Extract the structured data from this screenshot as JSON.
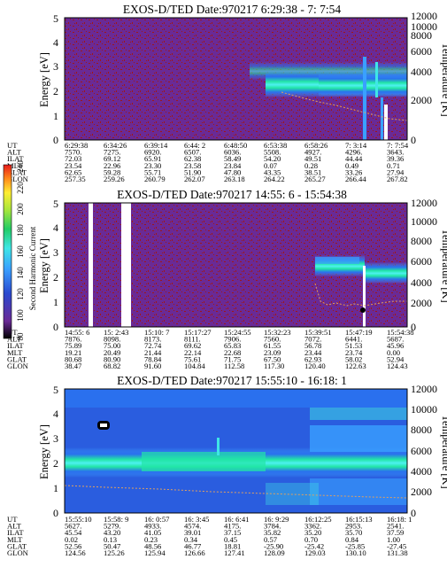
{
  "colors": {
    "background_purple": "#6a2a96",
    "speckle_red": "#a01818",
    "beam_cyan": "#4df0f0",
    "beam_green": "#22e6a6",
    "beam_blue": "#2a70ee",
    "temperature_curve": "#e0a060",
    "gap_white": "#ffffff"
  },
  "colorbar": {
    "label": "Second Harmonic Current",
    "ticks": [
      "80",
      "100",
      "120",
      "140",
      "160",
      "180",
      "200",
      "220",
      "240"
    ],
    "colors": [
      "#000000",
      "#6a2a96",
      "#2a4ad0",
      "#3aa0ff",
      "#3fe6e6",
      "#22cc66",
      "#a8e63c",
      "#ffee33",
      "#ff8a1a",
      "#e61a1a"
    ]
  },
  "chart_data": [
    {
      "type": "heatmap",
      "title": "EXOS-D/TED   Date:970217   6:29:38 - 7: 7:54",
      "ylabel": "Energy [eV]",
      "y2label": "Temperature [K]",
      "ylim": [
        0,
        5
      ],
      "y2lim": [
        0,
        12000
      ],
      "yticks": [
        "0",
        "1",
        "2",
        "3",
        "4",
        "5"
      ],
      "y2ticks": [
        "0",
        "2000",
        "4000",
        "6000",
        "8000",
        "10000",
        "12000"
      ],
      "rows": [
        {
          "label": "UT",
          "values": [
            "6:29:38",
            "6:34:26",
            "6:39:14",
            "6:44: 2",
            "6:48:50",
            "6:53:38",
            "6:58:26",
            "7: 3:14",
            "7: 7:54"
          ]
        },
        {
          "label": "ALT",
          "values": [
            "7570.",
            "7275.",
            "6920.",
            "6507.",
            "6036.",
            "5508.",
            "4927.",
            "4296.",
            "3643."
          ]
        },
        {
          "label": "ILAT",
          "values": [
            "72.03",
            "69.12",
            "65.91",
            "62.38",
            "58.49",
            "54.20",
            "49.51",
            "44.44",
            "39.36"
          ]
        },
        {
          "label": "MLT",
          "values": [
            "23.54",
            "22.96",
            "23.30",
            "23.58",
            "23.84",
            "0.07",
            "0.28",
            "0.49",
            "0.71"
          ]
        },
        {
          "label": "GLAT",
          "values": [
            "62.65",
            "59.28",
            "55.71",
            "51.90",
            "47.80",
            "43.35",
            "38.51",
            "33.26",
            "27.94"
          ]
        },
        {
          "label": "GLON",
          "values": [
            "257.35",
            "259.26",
            "260.79",
            "262.07",
            "263.18",
            "264.22",
            "265.27",
            "266.44",
            "267.82"
          ]
        }
      ],
      "beam": [
        {
          "x": 0.5,
          "center_ev": null
        },
        {
          "x": 0.52,
          "center_ev": 2.6
        },
        {
          "x": 0.6,
          "center_ev": 2.4
        },
        {
          "x": 0.7,
          "center_ev": 2.3
        },
        {
          "x": 0.8,
          "center_ev": 2.2
        },
        {
          "x": 0.9,
          "center_ev": 2.2
        },
        {
          "x": 1.0,
          "center_ev": 2.2
        }
      ],
      "temperature_k": [
        {
          "x": 0.63,
          "k": 5400
        },
        {
          "x": 0.7,
          "k": 4800
        },
        {
          "x": 0.8,
          "k": 3900
        },
        {
          "x": 0.9,
          "k": 3000
        },
        {
          "x": 1.0,
          "k": 2100
        }
      ]
    },
    {
      "type": "heatmap",
      "title": "EXOS-D/TED   Date:970217  14:55: 6 - 15:54:38",
      "ylabel": "Energy [eV]",
      "y2label": "Temperature [K]",
      "ylim": [
        0,
        5
      ],
      "y2lim": [
        0,
        12000
      ],
      "yticks": [
        "0",
        "1",
        "2",
        "3",
        "4",
        "5"
      ],
      "y2ticks": [
        "0",
        "2000",
        "4000",
        "6000",
        "8000",
        "10000",
        "12000"
      ],
      "rows": [
        {
          "label": "UT",
          "values": [
            "14:55: 6",
            "15: 2:43",
            "15:10: 7",
            "15:17:27",
            "15:24:55",
            "15:32:23",
            "15:39:51",
            "15:47:19",
            "15:54:38"
          ]
        },
        {
          "label": "ALT",
          "values": [
            "7876.",
            "8098.",
            "8173.",
            "8111.",
            "7906.",
            "7560.",
            "7072.",
            "6441.",
            "5687."
          ]
        },
        {
          "label": "ILAT",
          "values": [
            "75.89",
            "75.00",
            "72.74",
            "69.62",
            "65.83",
            "61.55",
            "56.78",
            "51.53",
            "45.96"
          ]
        },
        {
          "label": "MLT",
          "values": [
            "19.21",
            "20.49",
            "21.44",
            "22.14",
            "22.68",
            "23.09",
            "23.44",
            "23.74",
            "0.00"
          ]
        },
        {
          "label": "GLAT",
          "values": [
            "80.68",
            "80.90",
            "78.84",
            "75.61",
            "71.75",
            "67.50",
            "62.93",
            "58.02",
            "52.94"
          ]
        },
        {
          "label": "GLON",
          "values": [
            "38.47",
            "68.82",
            "91.60",
            "104.84",
            "112.58",
            "117.30",
            "120.40",
            "122.63",
            "124.43"
          ]
        }
      ],
      "beam": [
        {
          "x": 0.74,
          "center_ev": 2.65
        },
        {
          "x": 0.85,
          "center_ev": 2.55
        },
        {
          "x": 0.88,
          "center_ev": 2.35
        },
        {
          "x": 1.0,
          "center_ev": 2.35
        }
      ],
      "temperature_k": [
        {
          "x": 0.74,
          "k": 3300
        },
        {
          "x": 0.78,
          "k": 1700
        },
        {
          "x": 0.85,
          "k": 1800
        },
        {
          "x": 0.9,
          "k": 1600
        },
        {
          "x": 1.0,
          "k": 1500
        }
      ]
    },
    {
      "type": "heatmap",
      "title": "EXOS-D/TED   Date:970217  15:55:10 - 16:18: 1",
      "ylabel": "Energy [eV]",
      "y2label": "Temperature [K]",
      "ylim": [
        0,
        5
      ],
      "y2lim": [
        0,
        12000
      ],
      "yticks": [
        "0",
        "1",
        "2",
        "3",
        "4",
        "5"
      ],
      "y2ticks": [
        "0",
        "2000",
        "4000",
        "6000",
        "8000",
        "10000",
        "12000"
      ],
      "rows": [
        {
          "label": "UT",
          "values": [
            "15:55:10",
            "15:58: 9",
            "16: 0:57",
            "16: 3:45",
            "16: 6:41",
            "16: 9:29",
            "16:12:25",
            "16:15:13",
            "16:18: 1"
          ]
        },
        {
          "label": "ALT",
          "values": [
            "5627.",
            "5279.",
            "4933.",
            "4574.",
            "4175.",
            "3784.",
            "3362.",
            "2953.",
            "2541."
          ]
        },
        {
          "label": "ILAT",
          "values": [
            "45.54",
            "43.20",
            "41.05",
            "39.01",
            "37.15",
            "35.82",
            "35.20",
            "35.70",
            "37.59"
          ]
        },
        {
          "label": "MLT",
          "values": [
            "0.02",
            "0.13",
            "0.23",
            "0.34",
            "0.45",
            "0.57",
            "0.70",
            "0.84",
            "1.00"
          ]
        },
        {
          "label": "GLAT",
          "values": [
            "52.56",
            "50.47",
            "48.56",
            "46.77",
            "18.81",
            "-25.90",
            "-25.42",
            "-25.85",
            "-27.45"
          ]
        },
        {
          "label": "GLON",
          "values": [
            "124.56",
            "125.26",
            "125.94",
            "126.66",
            "127.41",
            "128.09",
            "129.03",
            "130.10",
            "131.38"
          ]
        }
      ],
      "beam": [
        {
          "x": 0.0,
          "center_ev": 2.2
        },
        {
          "x": 0.5,
          "center_ev": 2.2
        },
        {
          "x": 0.7,
          "center_ev": 2.2
        },
        {
          "x": 0.85,
          "center_ev": 2.3
        },
        {
          "x": 1.0,
          "center_ev": 2.3
        }
      ],
      "temperature_k": [
        {
          "x": 0.0,
          "k": 2600
        },
        {
          "x": 0.4,
          "k": 2200
        },
        {
          "x": 0.7,
          "k": 1800
        },
        {
          "x": 1.0,
          "k": 1300
        }
      ]
    }
  ]
}
